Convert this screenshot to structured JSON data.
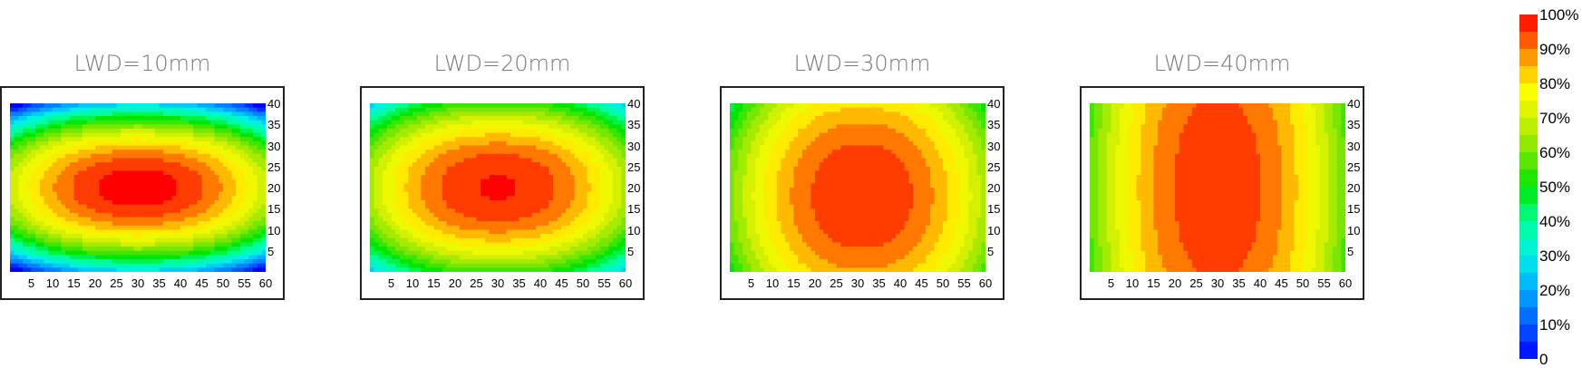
{
  "chart_data": [
    {
      "type": "heatmap",
      "title": "LWD=10mm",
      "x_ticks": [
        5,
        10,
        15,
        20,
        25,
        30,
        35,
        40,
        45,
        50,
        55,
        60
      ],
      "y_ticks": [
        5,
        10,
        15,
        20,
        25,
        30,
        35,
        40
      ],
      "xlim": [
        0,
        60
      ],
      "ylim": [
        0,
        40
      ],
      "peak_center": [
        30,
        20
      ],
      "peak_value_pct": 100,
      "corner_value_pct": 10,
      "edge_x_value_pct": 68,
      "edge_y_value_pct": 24
    },
    {
      "type": "heatmap",
      "title": "LWD=20mm",
      "x_ticks": [
        5,
        10,
        15,
        20,
        25,
        30,
        35,
        40,
        45,
        50,
        55,
        60
      ],
      "y_ticks": [
        5,
        10,
        15,
        20,
        25,
        30,
        35,
        40
      ],
      "xlim": [
        0,
        60
      ],
      "ylim": [
        0,
        40
      ],
      "peak_center": [
        30,
        20
      ],
      "peak_value_pct": 98,
      "corner_value_pct": 38,
      "edge_x_value_pct": 66,
      "edge_y_value_pct": 55
    },
    {
      "type": "heatmap",
      "title": "LWD=30mm",
      "x_ticks": [
        5,
        10,
        15,
        20,
        25,
        30,
        35,
        40,
        45,
        50,
        55,
        60
      ],
      "y_ticks": [
        5,
        10,
        15,
        20,
        25,
        30,
        35,
        40
      ],
      "xlim": [
        0,
        60
      ],
      "ylim": [
        0,
        40
      ],
      "peak_center": [
        31,
        18
      ],
      "peak_value_pct": 97,
      "corner_value_pct": 58,
      "edge_x_value_pct": 62,
      "edge_y_value_pct": 84
    },
    {
      "type": "heatmap",
      "title": "LWD=40mm",
      "x_ticks": [
        5,
        10,
        15,
        20,
        25,
        30,
        35,
        40,
        45,
        50,
        55,
        60
      ],
      "y_ticks": [
        5,
        10,
        15,
        20,
        25,
        30,
        35,
        40
      ],
      "xlim": [
        0,
        60
      ],
      "ylim": [
        0,
        40
      ],
      "peak_center": [
        30,
        20
      ],
      "peak_value_pct": 96,
      "corner_value_pct": 55,
      "edge_x_value_pct": 57,
      "edge_y_value_pct": 93
    }
  ],
  "colorbar": {
    "labels": [
      "100%",
      "90%",
      "80%",
      "70%",
      "60%",
      "50%",
      "40%",
      "30%",
      "20%",
      "10%",
      "0"
    ],
    "colors": [
      "#ff0000",
      "#ff3c00",
      "#ff7800",
      "#ffb400",
      "#ffff00",
      "#b4ff00",
      "#5aff00",
      "#00ff00",
      "#00ff78",
      "#00ffd2",
      "#00d2ff",
      "#0096ff",
      "#0050ff",
      "#0000ff"
    ]
  }
}
